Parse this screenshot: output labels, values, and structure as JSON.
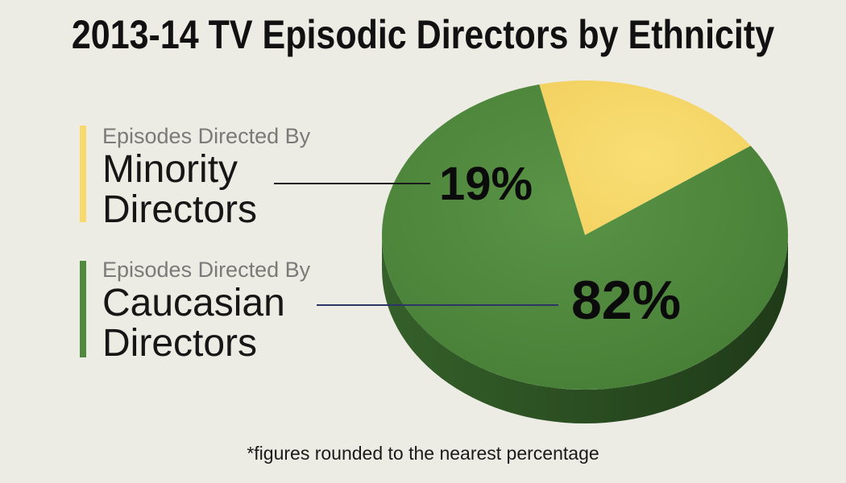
{
  "title": "2013-14 TV Episodic Directors by Ethnicity",
  "footnote": "*figures rounded to the nearest percentage",
  "legend": {
    "minority": {
      "sub": "Episodes Directed By",
      "line1": "Minority",
      "line2": "Directors"
    },
    "caucasian": {
      "sub": "Episodes Directed By",
      "line1": "Caucasian",
      "line2": "Directors"
    }
  },
  "chart_data": {
    "type": "pie",
    "title": "2013-14 TV Episodic Directors by Ethnicity",
    "slices": [
      {
        "label": "Minority Directors",
        "value": 19,
        "display": "19%",
        "color": "#f7d96c"
      },
      {
        "label": "Caucasian Directors",
        "value": 82,
        "display": "82%",
        "color": "#4f8a3d"
      }
    ],
    "note": "*figures rounded to the nearest percentage"
  }
}
